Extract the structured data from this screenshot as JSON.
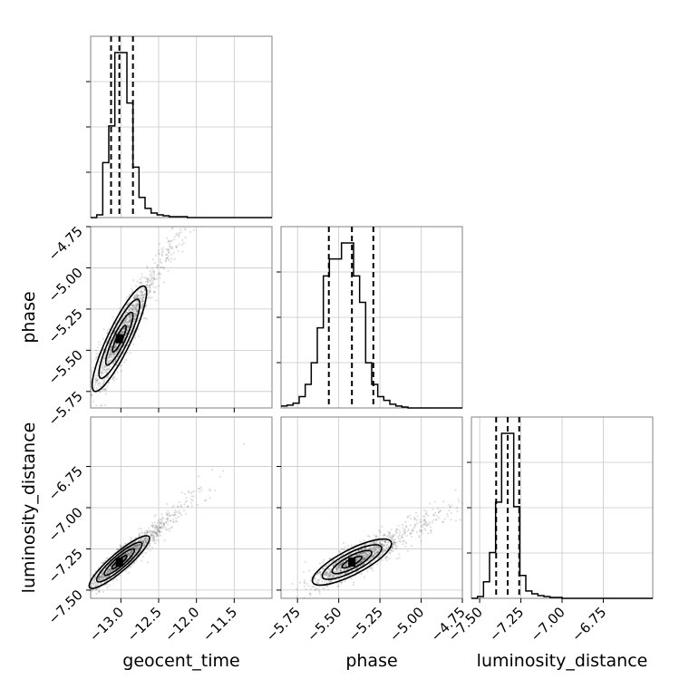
{
  "chart_data": {
    "type": "corner",
    "parameters": [
      "geocent_time",
      "phase",
      "luminosity_distance"
    ],
    "axis_labels": [
      "geocent_time",
      "phase",
      "luminosity_distance"
    ],
    "grid": true,
    "ranges": {
      "geocent_time": [
        -13.4,
        -11.0
      ],
      "phase": [
        -5.85,
        -4.75
      ],
      "luminosity_distance": [
        -7.55,
        -6.45
      ]
    },
    "ticks": {
      "geocent_time": [
        -13.0,
        -12.5,
        -12.0,
        -11.5
      ],
      "phase": [
        -5.75,
        -5.5,
        -5.25,
        -5.0,
        -4.75
      ],
      "luminosity_distance": [
        -7.5,
        -7.25,
        -7.0,
        -6.75
      ]
    },
    "tick_labels": {
      "geocent_time": [
        "−13.0",
        "−12.5",
        "−12.0",
        "−11.5"
      ],
      "phase": [
        "−5.75",
        "−5.50",
        "−5.25",
        "−5.00",
        "−4.75"
      ],
      "luminosity_distance": [
        "−7.50",
        "−7.25",
        "−7.00",
        "−6.75"
      ]
    },
    "quantiles": {
      "geocent_time": [
        -13.13,
        -13.02,
        -12.84
      ],
      "phase": [
        -5.56,
        -5.42,
        -5.29
      ],
      "luminosity_distance": [
        -7.4,
        -7.33,
        -7.26
      ]
    },
    "histograms": {
      "geocent_time": {
        "bin_edges": [
          -13.4,
          -13.32,
          -13.24,
          -13.16,
          -13.08,
          -13.0,
          -12.92,
          -12.84,
          -12.76,
          -12.68,
          -12.6,
          -12.52,
          -12.44,
          -12.36,
          -12.28,
          -12.2,
          -12.12,
          -12.04,
          -11.96,
          -11.88,
          -11.8,
          -11.72,
          -11.64,
          -11.56,
          -11.48,
          -11.4,
          -11.32,
          -11.24,
          -11.16,
          -11.08,
          -11.0
        ],
        "counts": [
          0,
          3,
          60,
          100,
          180,
          180,
          125,
          55,
          22,
          10,
          5,
          3,
          2,
          1,
          1,
          1,
          0,
          0,
          0,
          0,
          0,
          0,
          0,
          0,
          0,
          0,
          0,
          0,
          0,
          0
        ]
      },
      "phase": {
        "bin_edges": [
          -5.85,
          -5.8133,
          -5.7767,
          -5.74,
          -5.7033,
          -5.6667,
          -5.63,
          -5.5933,
          -5.5567,
          -5.52,
          -5.4833,
          -5.4467,
          -5.41,
          -5.3733,
          -5.3367,
          -5.3,
          -5.2633,
          -5.2267,
          -5.19,
          -5.1533,
          -5.1167,
          -5.08,
          -5.0433,
          -5.0067,
          -4.97,
          -4.9333,
          -4.8967,
          -4.86,
          -4.8233,
          -4.7867,
          -4.75
        ],
        "counts": [
          2,
          3,
          5,
          12,
          25,
          48,
          85,
          140,
          158,
          158,
          175,
          175,
          140,
          112,
          48,
          25,
          12,
          8,
          4,
          2,
          1,
          0,
          0,
          0,
          0,
          0,
          0,
          0,
          0,
          0
        ]
      },
      "luminosity_distance": {
        "bin_edges": [
          -7.55,
          -7.5133,
          -7.4767,
          -7.44,
          -7.4033,
          -7.3667,
          -7.33,
          -7.2933,
          -7.2567,
          -7.22,
          -7.1833,
          -7.1467,
          -7.11,
          -7.0733,
          -7.0367,
          -7.0,
          -6.9633,
          -6.9267,
          -6.89,
          -6.8533,
          -6.8167,
          -6.78,
          -6.7433,
          -6.7067,
          -6.67,
          -6.6333,
          -6.5967,
          -6.56,
          -6.5233,
          -6.4867,
          -6.45
        ],
        "counts": [
          0,
          2,
          18,
          50,
          105,
          180,
          180,
          100,
          25,
          8,
          5,
          3,
          2,
          1,
          1,
          0,
          0,
          0,
          0,
          0,
          0,
          0,
          0,
          0,
          0,
          0,
          0,
          0,
          0,
          0
        ]
      }
    },
    "correlations": {
      "phase_vs_geocent_time": 0.88,
      "luminosity_distance_vs_geocent_time": 0.9,
      "luminosity_distance_vs_phase": 0.8
    }
  }
}
